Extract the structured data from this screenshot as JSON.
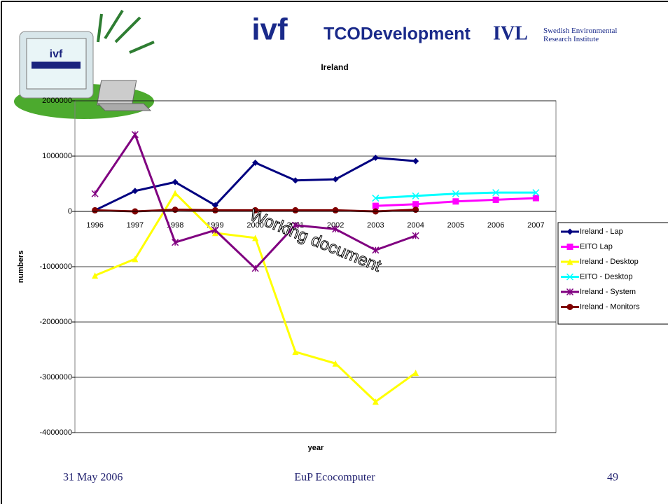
{
  "logos": {
    "ivf": "ivf",
    "tco": "TCODevelopment",
    "ivl": "IVL",
    "ivl_name": "Swedish Environmental Research Institute"
  },
  "chart_data": {
    "type": "line",
    "title": "Ireland",
    "x_label": "year",
    "y_label": "numbers",
    "categories": [
      "1996",
      "1997",
      "1998",
      "1999",
      "2000",
      "2001",
      "2002",
      "2003",
      "2004",
      "2005",
      "2006",
      "2007"
    ],
    "ylim": [
      -4000000,
      2000000
    ],
    "yticks": [
      -4000000,
      -3000000,
      -2000000,
      -1000000,
      0,
      1000000,
      2000000
    ],
    "grid": true,
    "series": [
      {
        "name": "Ireland - Lap",
        "color": "#000080",
        "marker": "diamond",
        "values": [
          20000,
          370000,
          530000,
          110000,
          880000,
          560000,
          580000,
          970000,
          910000,
          null,
          null,
          null
        ]
      },
      {
        "name": "EITO Lap",
        "color": "#ff00ff",
        "marker": "square",
        "values": [
          null,
          null,
          null,
          null,
          null,
          null,
          null,
          100000,
          130000,
          180000,
          210000,
          240000
        ]
      },
      {
        "name": "Ireland - Desktop",
        "color": "#ffff00",
        "marker": "triangle",
        "values": [
          -1160000,
          -860000,
          330000,
          -390000,
          -480000,
          -2540000,
          -2750000,
          -3440000,
          -2920000,
          null,
          null,
          null
        ]
      },
      {
        "name": "EITO - Desktop",
        "color": "#00ffff",
        "marker": "x",
        "values": [
          null,
          null,
          null,
          null,
          null,
          null,
          null,
          240000,
          280000,
          320000,
          340000,
          340000
        ]
      },
      {
        "name": "Ireland - System",
        "color": "#800080",
        "marker": "star",
        "values": [
          320000,
          1390000,
          -560000,
          -340000,
          -1030000,
          -250000,
          -320000,
          -700000,
          -440000,
          null,
          null,
          null
        ]
      },
      {
        "name": "Ireland - Monitors",
        "color": "#800000",
        "marker": "circle",
        "values": [
          20000,
          0,
          30000,
          20000,
          20000,
          20000,
          20000,
          0,
          30000,
          null,
          null,
          null
        ]
      }
    ],
    "legend": "right",
    "watermark": "Working document"
  },
  "footer": {
    "date": "31 May 2006",
    "title": "EuP Ecocomputer",
    "page": "49"
  }
}
